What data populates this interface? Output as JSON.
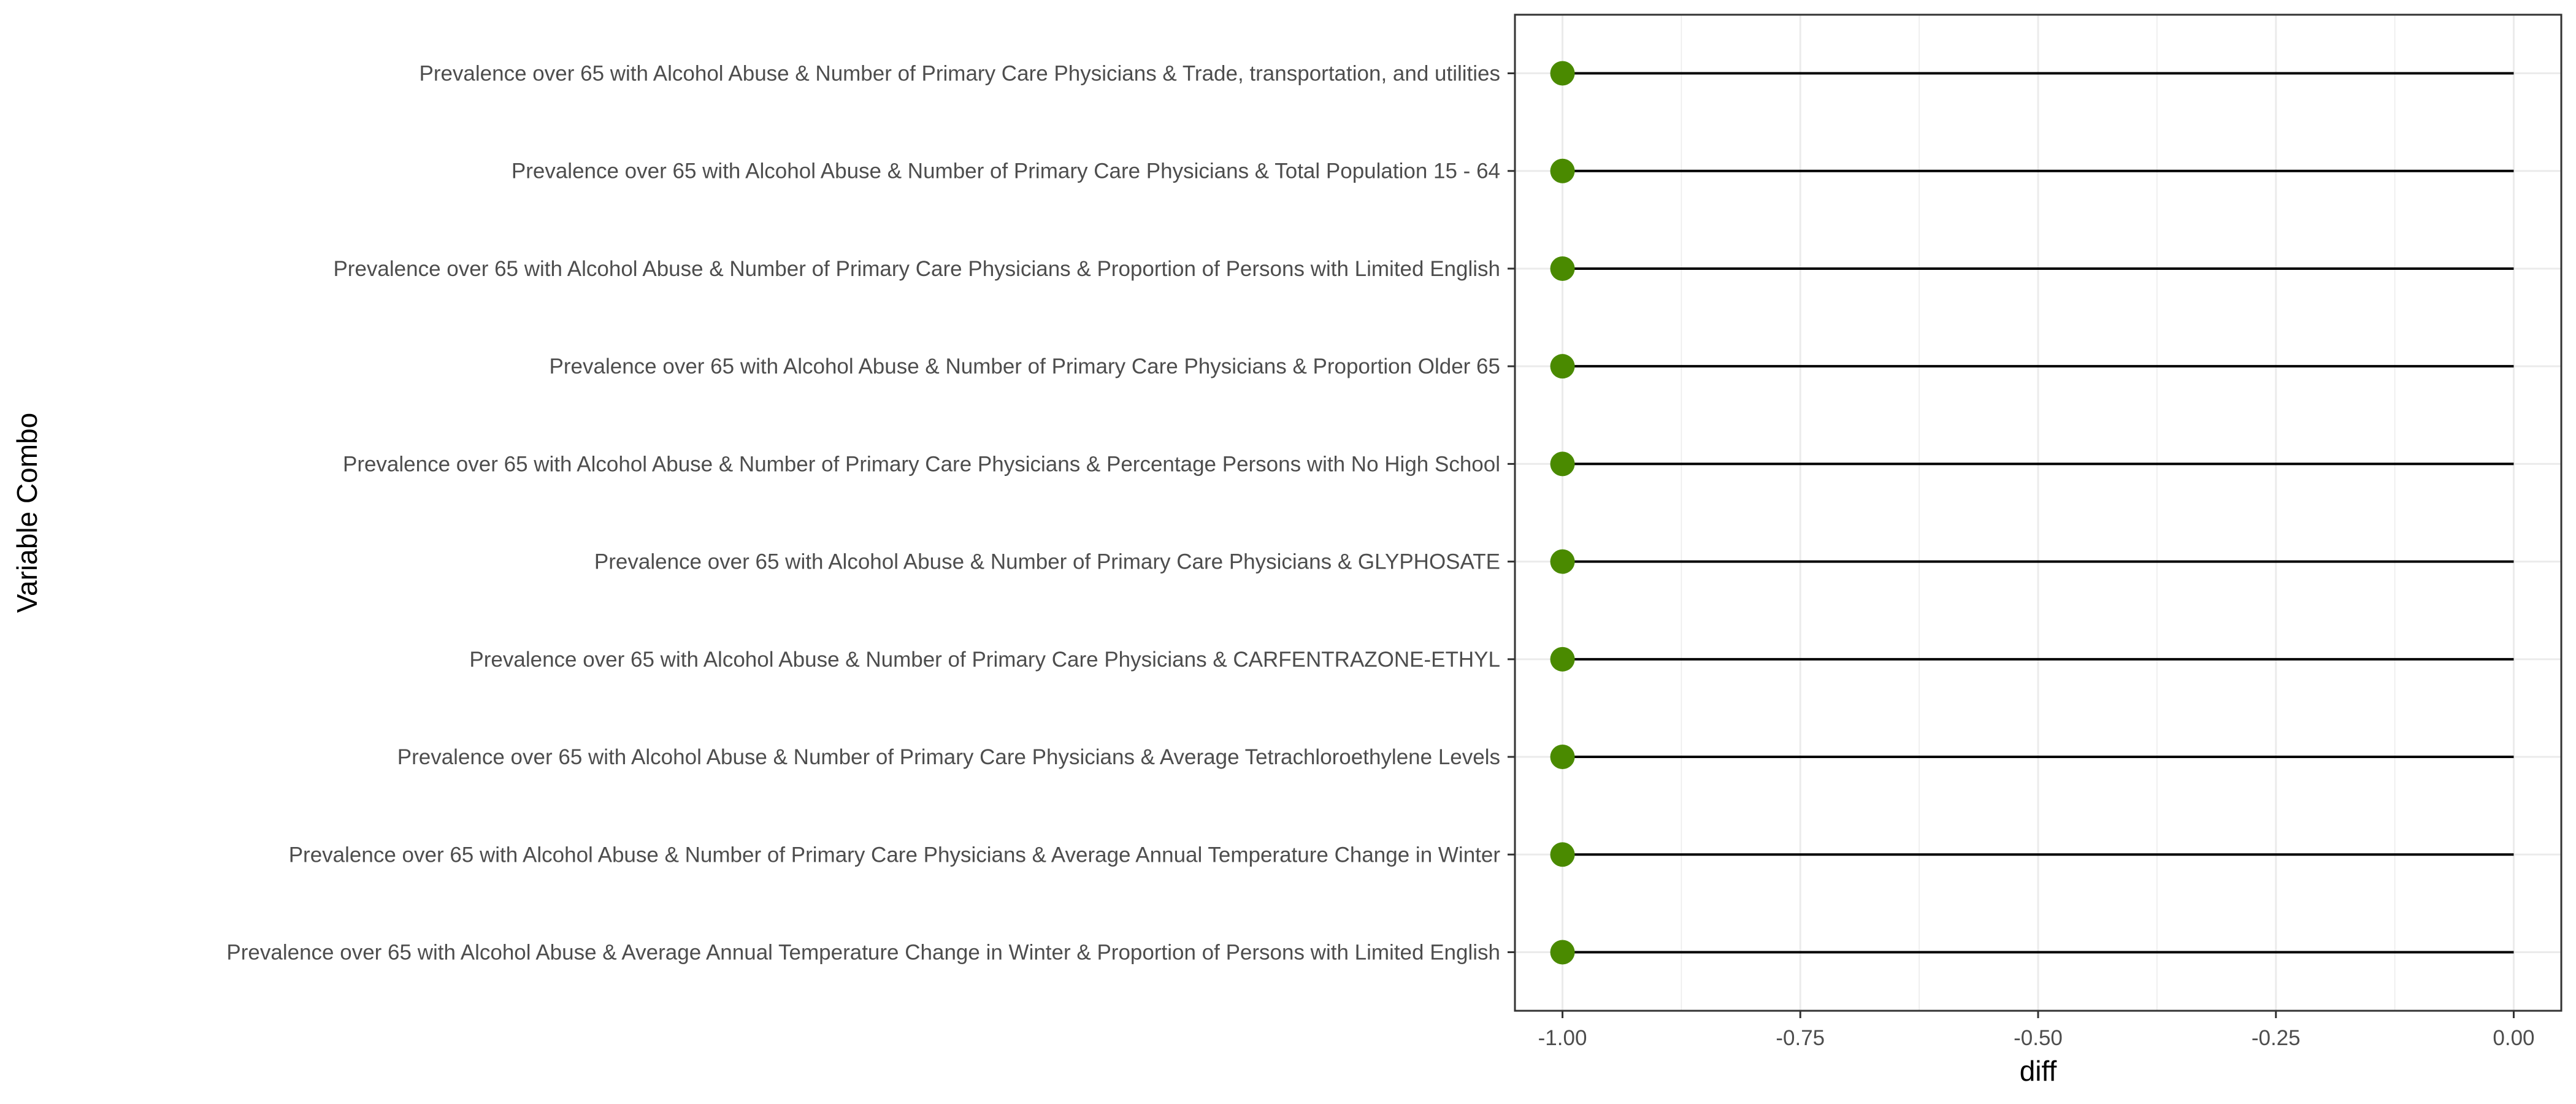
{
  "chart_data": {
    "type": "lollipop",
    "xlabel": "diff",
    "ylabel": "Variable Combo",
    "xlim": [
      -1.05,
      0.05
    ],
    "x_ticks": [
      -1.0,
      -0.75,
      -0.5,
      -0.25,
      0.0
    ],
    "x_tick_labels": [
      "-1.00",
      "-0.75",
      "-0.50",
      "-0.25",
      "0.00"
    ],
    "grid": true,
    "categories": [
      "Prevalence over 65 with Alcohol Abuse & Number of Primary Care Physicians & Trade, transportation, and utilities",
      "Prevalence over 65 with Alcohol Abuse & Number of Primary Care Physicians & Total Population 15 - 64",
      "Prevalence over 65 with Alcohol Abuse & Number of Primary Care Physicians & Proportion of Persons with Limited English",
      "Prevalence over 65 with Alcohol Abuse & Number of Primary Care Physicians & Proportion Older 65",
      "Prevalence over 65 with Alcohol Abuse & Number of Primary Care Physicians & Percentage Persons with No High School",
      "Prevalence over 65 with Alcohol Abuse & Number of Primary Care Physicians & GLYPHOSATE",
      "Prevalence over 65 with Alcohol Abuse & Number of Primary Care Physicians & CARFENTRAZONE-ETHYL",
      "Prevalence over 65 with Alcohol Abuse & Number of Primary Care Physicians & Average Tetrachloroethylene Levels",
      "Prevalence over 65 with Alcohol Abuse & Number of Primary Care Physicians & Average Annual Temperature Change in Winter",
      "Prevalence over 65 with Alcohol Abuse & Average Annual Temperature Change in Winter & Proportion of Persons with Limited English"
    ],
    "values": [
      -1.0,
      -1.0,
      -1.0,
      -1.0,
      -1.0,
      -1.0,
      -1.0,
      -1.0,
      -1.0,
      -1.0
    ],
    "baseline": 0.0,
    "colors": {
      "point": "#4a8a00",
      "segment": "#000000",
      "grid": "#ebebeb",
      "panel_border": "#333333",
      "tick_label": "#4d4d4d"
    }
  }
}
